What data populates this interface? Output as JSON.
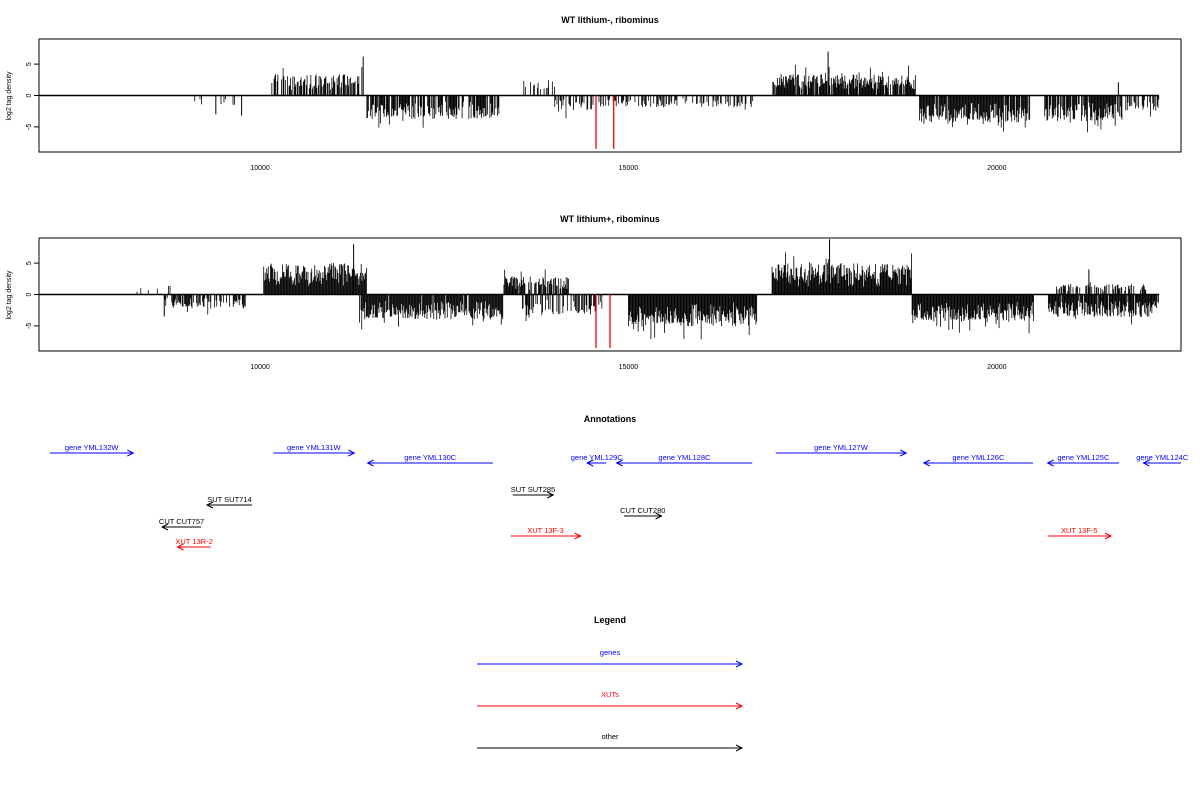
{
  "chart_data": [
    {
      "type": "bar",
      "title": "WT lithium-, ribominus",
      "ylabel": "log2 tag density",
      "xlim": [
        7000,
        22500
      ],
      "ylim": [
        -9,
        9
      ],
      "xticks": [
        10000,
        15000,
        20000
      ],
      "yticks": [
        5,
        0,
        -5
      ],
      "baseline": {
        "from": 7000,
        "to": 22200
      },
      "segments": [
        {
          "from": 8900,
          "to": 9700,
          "dir": -1,
          "amp": 1.6,
          "density": 0.1,
          "seed": 11
        },
        {
          "from": 10150,
          "to": 11400,
          "dir": 1,
          "amp": 3.4,
          "density": 0.7,
          "seed": 12
        },
        {
          "from": 11450,
          "to": 13250,
          "dir": -1,
          "amp": 3.8,
          "density": 0.75,
          "seed": 13
        },
        {
          "from": 13550,
          "to": 14050,
          "dir": 1,
          "amp": 2.4,
          "density": 0.3,
          "seed": 14
        },
        {
          "from": 14000,
          "to": 14550,
          "dir": -1,
          "amp": 2.6,
          "density": 0.5,
          "seed": 15
        },
        {
          "from": 14600,
          "to": 16700,
          "dir": -1,
          "amp": 1.9,
          "density": 0.4,
          "seed": 16
        },
        {
          "from": 16950,
          "to": 18900,
          "dir": 1,
          "amp": 3.4,
          "density": 0.9,
          "seed": 17
        },
        {
          "from": 18950,
          "to": 20450,
          "dir": -1,
          "amp": 4.3,
          "density": 0.95,
          "seed": 18
        },
        {
          "from": 20650,
          "to": 21700,
          "dir": -1,
          "amp": 4.1,
          "density": 0.85,
          "seed": 19
        },
        {
          "from": 21750,
          "to": 22200,
          "dir": -1,
          "amp": 2.4,
          "density": 0.5,
          "seed": 20
        }
      ],
      "spikes": [
        {
          "x": 11400,
          "y": 6.2
        },
        {
          "x": 17710,
          "y": 7.0
        },
        {
          "x": 21650,
          "y": 2.1
        },
        {
          "x": 9400,
          "y": -3.0
        },
        {
          "x": 9750,
          "y": -3.2
        }
      ],
      "red_spikes": [
        {
          "x": 14560,
          "y": -8.5
        },
        {
          "x": 14800,
          "y": -8.5
        }
      ]
    },
    {
      "type": "bar",
      "title": "WT lithium+, ribominus",
      "ylabel": "log2 tag density",
      "xlim": [
        7000,
        22500
      ],
      "ylim": [
        -9,
        9
      ],
      "xticks": [
        10000,
        15000,
        20000
      ],
      "yticks": [
        5,
        0,
        -5
      ],
      "baseline": {
        "from": 7000,
        "to": 22200
      },
      "segments": [
        {
          "from": 8300,
          "to": 8800,
          "dir": 1,
          "amp": 1.5,
          "density": 0.2,
          "seed": 31
        },
        {
          "from": 8700,
          "to": 9800,
          "dir": -1,
          "amp": 2.2,
          "density": 0.55,
          "seed": 32
        },
        {
          "from": 10050,
          "to": 11450,
          "dir": 1,
          "amp": 5.0,
          "density": 1.0,
          "seed": 33
        },
        {
          "from": 11350,
          "to": 13300,
          "dir": -1,
          "amp": 4.0,
          "density": 0.95,
          "seed": 34
        },
        {
          "from": 13300,
          "to": 14200,
          "dir": 1,
          "amp": 2.9,
          "density": 0.8,
          "seed": 35
        },
        {
          "from": 13550,
          "to": 14650,
          "dir": -1,
          "amp": 3.3,
          "density": 0.6,
          "seed": 36
        },
        {
          "from": 15000,
          "to": 16750,
          "dir": -1,
          "amp": 5.1,
          "density": 1.0,
          "seed": 37
        },
        {
          "from": 16950,
          "to": 18850,
          "dir": 1,
          "amp": 5.0,
          "density": 1.0,
          "seed": 38
        },
        {
          "from": 18850,
          "to": 20500,
          "dir": -1,
          "amp": 4.3,
          "density": 1.0,
          "seed": 39
        },
        {
          "from": 20700,
          "to": 22200,
          "dir": -1,
          "amp": 3.6,
          "density": 0.95,
          "seed": 40
        },
        {
          "from": 20800,
          "to": 22100,
          "dir": 1,
          "amp": 1.7,
          "density": 0.5,
          "seed": 41
        }
      ],
      "spikes": [
        {
          "x": 11270,
          "y": 8.0
        },
        {
          "x": 17730,
          "y": 8.8
        },
        {
          "x": 21250,
          "y": 4.0
        },
        {
          "x": 8700,
          "y": -3.5
        }
      ],
      "red_spikes": [
        {
          "x": 14560,
          "y": -8.5
        },
        {
          "x": 14750,
          "y": -8.5
        }
      ]
    }
  ],
  "annotations": {
    "title": "Annotations",
    "features": [
      {
        "label": "gene YML132W",
        "from": 7150,
        "to": 8280,
        "type": "gene",
        "row": 0
      },
      {
        "label": "gene YML131W",
        "from": 10180,
        "to": 11280,
        "type": "gene",
        "row": 0
      },
      {
        "label": "gene YML130C",
        "from": 13160,
        "to": 11460,
        "type": "gene",
        "row": 1
      },
      {
        "label": "gene YML129C",
        "from": 14700,
        "to": 14440,
        "type": "gene",
        "row": 1
      },
      {
        "label": "gene YML128C",
        "from": 16680,
        "to": 14840,
        "type": "gene",
        "row": 1
      },
      {
        "label": "gene YML127W",
        "from": 17000,
        "to": 18770,
        "type": "gene",
        "row": 0
      },
      {
        "label": "gene YML126C",
        "from": 20490,
        "to": 19010,
        "type": "gene",
        "row": 1
      },
      {
        "label": "gene YML125C",
        "from": 21660,
        "to": 20690,
        "type": "gene",
        "row": 1
      },
      {
        "label": "gene YML124C",
        "from": 22500,
        "to": 21990,
        "type": "gene",
        "row": 1
      },
      {
        "label": "SUT SUT714",
        "from": 9890,
        "to": 9280,
        "type": "other",
        "row": 2
      },
      {
        "label": "SUT SUT285",
        "from": 13430,
        "to": 13980,
        "type": "other",
        "row": 3
      },
      {
        "label": "CUT CUT757",
        "from": 9200,
        "to": 8670,
        "type": "other",
        "row": 4
      },
      {
        "label": "CUT CUT280",
        "from": 14940,
        "to": 15450,
        "type": "other",
        "row": 5
      },
      {
        "label": "XUT 13R-2",
        "from": 9330,
        "to": 8880,
        "type": "xut",
        "row": 6
      },
      {
        "label": "XUT 13F-3",
        "from": 13400,
        "to": 14350,
        "type": "xut",
        "row": 7
      },
      {
        "label": "XUT 13F-5",
        "from": 20690,
        "to": 21550,
        "type": "xut",
        "row": 7
      }
    ]
  },
  "legend": {
    "title": "Legend",
    "items": [
      {
        "label": "genes",
        "color": "#0000ff"
      },
      {
        "label": "XUTs",
        "color": "#ff0000"
      },
      {
        "label": "other",
        "color": "#000000"
      }
    ]
  },
  "colors": {
    "gene": "#0000ff",
    "xut": "#ff0000",
    "other": "#000000",
    "bars": "#000000",
    "red_bars": "#ff0000"
  }
}
